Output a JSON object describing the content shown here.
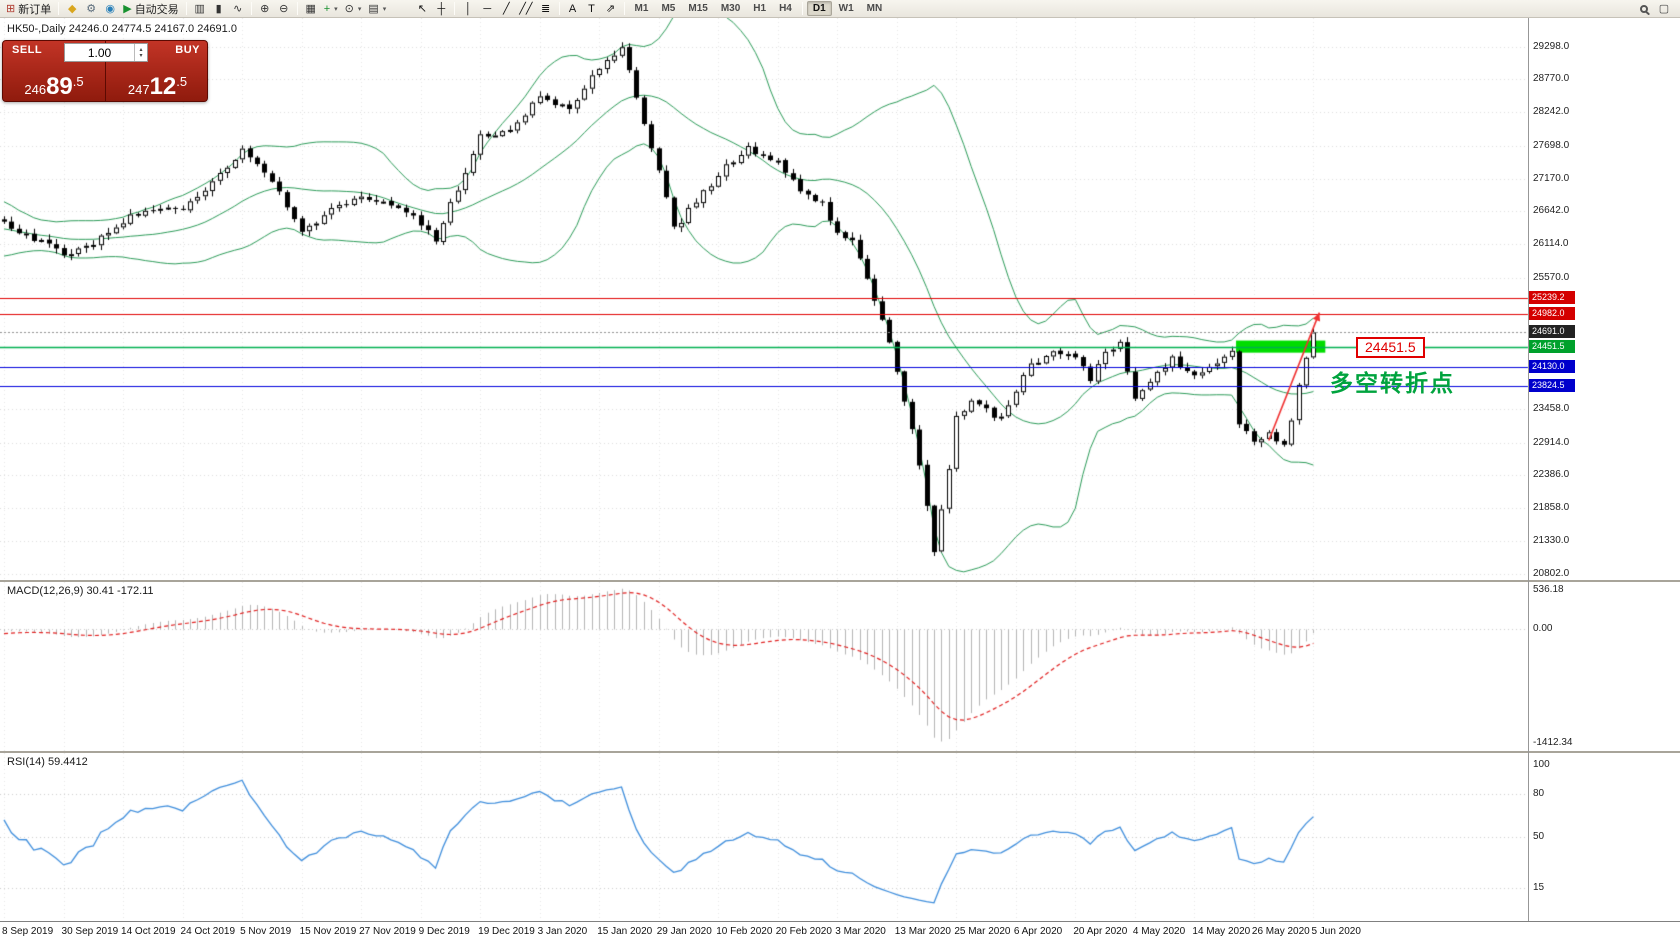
{
  "colors": {
    "background": "#ffffff",
    "grid": "#dcdcdc",
    "axis_text": "#222222",
    "bull_body": "#ffffff",
    "bear_body": "#000000",
    "candle_outline": "#000000",
    "bollinger": "#2a9a57",
    "macd_histogram": "#b4b4b4",
    "macd_signal": "#e02020",
    "rsi_line": "#3f8edc",
    "zone": "#00dd00",
    "arrow": "#f03030"
  },
  "icons": {
    "caret": "▾",
    "volume_up": "▴",
    "volume_down": "▾",
    "fullscreen": "▢"
  },
  "toolbar": {
    "new_order_label": "新订单",
    "autotrading_label": "自动交易",
    "active_timeframe": "D1",
    "timeframes": [
      "M1",
      "M5",
      "M15",
      "M30",
      "H1",
      "H4",
      "D1",
      "W1",
      "MN"
    ],
    "items": [
      {
        "type": "button",
        "name": "new-order-button",
        "icon": "new-order-icon",
        "glyph": "⊞",
        "glyph_color": "#b03a2e",
        "label_key": "new_order_label"
      },
      {
        "type": "sep"
      },
      {
        "type": "icon",
        "name": "metaeditor-button",
        "icon": "metaeditor-icon",
        "glyph": "◆",
        "glyph_color": "#d9a61e"
      },
      {
        "type": "icon",
        "name": "options-button",
        "icon": "gear-icon",
        "glyph": "⚙",
        "glyph_color": "#5a6b7a"
      },
      {
        "type": "icon",
        "name": "community-button",
        "icon": "community-icon",
        "glyph": "◉",
        "glyph_color": "#2980b9"
      },
      {
        "type": "button",
        "name": "autotrading-button",
        "icon": "autotrading-play-icon",
        "glyph": "▶",
        "glyph_color": "#18912f",
        "label_key": "autotrading_label"
      },
      {
        "type": "sep"
      },
      {
        "type": "icon",
        "name": "bar-chart-button",
        "icon": "bar-chart-icon",
        "glyph": "▥",
        "glyph_color": "#333333"
      },
      {
        "type": "icon",
        "name": "candlestick-chart-button",
        "icon": "candlestick-chart-icon",
        "glyph": "▮",
        "glyph_color": "#333333"
      },
      {
        "type": "icon",
        "name": "line-chart-button",
        "icon": "line-chart-icon",
        "glyph": "∿",
        "glyph_color": "#333333"
      },
      {
        "type": "sep"
      },
      {
        "type": "icon",
        "name": "zoom-in-button",
        "icon": "zoom-in-icon",
        "glyph": "⊕",
        "glyph_color": "#333333"
      },
      {
        "type": "icon",
        "name": "zoom-out-button",
        "icon": "zoom-out-icon",
        "glyph": "⊖",
        "glyph_color": "#333333"
      },
      {
        "type": "sep"
      },
      {
        "type": "icon",
        "name": "tile-windows-button",
        "icon": "tile-windows-icon",
        "glyph": "▦",
        "glyph_color": "#333333"
      },
      {
        "type": "icon-caret",
        "name": "indicators-button",
        "icon": "indicators-icon",
        "glyph": "+",
        "glyph_color": "#18912f"
      },
      {
        "type": "icon-caret",
        "name": "periods-button",
        "icon": "clock-icon",
        "glyph": "⊙",
        "glyph_color": "#333333"
      },
      {
        "type": "icon-caret",
        "name": "templates-button",
        "icon": "templates-icon",
        "glyph": "▤",
        "glyph_color": "#333333"
      },
      {
        "type": "gap"
      },
      {
        "type": "icon",
        "name": "cursor-button",
        "icon": "cursor-icon",
        "glyph": "↖",
        "glyph_color": "#111111"
      },
      {
        "type": "icon",
        "name": "crosshair-button",
        "icon": "crosshair-icon",
        "glyph": "┼",
        "glyph_color": "#111111"
      },
      {
        "type": "sep"
      },
      {
        "type": "icon",
        "name": "vertical-line-button",
        "icon": "vertical-line-icon",
        "glyph": "│",
        "glyph_color": "#111111"
      },
      {
        "type": "icon",
        "name": "horizontal-line-button",
        "icon": "horizontal-line-icon",
        "glyph": "─",
        "glyph_color": "#111111"
      },
      {
        "type": "icon",
        "name": "trendline-button",
        "icon": "trendline-icon",
        "glyph": "╱",
        "glyph_color": "#111111"
      },
      {
        "type": "icon",
        "name": "channel-button",
        "icon": "channel-icon",
        "glyph": "╱╱",
        "glyph_color": "#111111"
      },
      {
        "type": "icon",
        "name": "fibonacci-button",
        "icon": "fibonacci-icon",
        "glyph": "≣",
        "glyph_color": "#111111"
      },
      {
        "type": "sep"
      },
      {
        "type": "icon",
        "name": "text-button",
        "icon": "text-icon",
        "glyph": "A",
        "glyph_color": "#111111"
      },
      {
        "type": "icon",
        "name": "text-label-button",
        "icon": "text-label-icon",
        "glyph": "T",
        "glyph_color": "#111111"
      },
      {
        "type": "icon",
        "name": "arrows-button",
        "icon": "arrows-icon",
        "glyph": "⇗",
        "glyph_color": "#111111"
      },
      {
        "type": "sep"
      }
    ]
  },
  "trade_panel": {
    "sell_label": "SELL",
    "buy_label": "BUY",
    "volume": "1.00",
    "sell_price": {
      "pre": "246",
      "big": "89",
      "frac": ".5"
    },
    "buy_price": {
      "pre": "247",
      "big": "12",
      "frac": ".5"
    }
  },
  "chart": {
    "header": "HK50-,Daily  24246.0 24774.5 24167.0 24691.0",
    "symbol": "HK50-",
    "period": "Daily"
  },
  "annotations": {
    "price_label": "24451.5",
    "cn_text": "多空转折点"
  },
  "price_axis": {
    "labels": [
      {
        "text": "29298.0",
        "value": 29298.0
      },
      {
        "text": "28770.0",
        "value": 28770.0
      },
      {
        "text": "28242.0",
        "value": 28242.0
      },
      {
        "text": "27698.0",
        "value": 27698.0
      },
      {
        "text": "27170.0",
        "value": 27170.0
      },
      {
        "text": "26642.0",
        "value": 26642.0
      },
      {
        "text": "26114.0",
        "value": 26114.0
      },
      {
        "text": "25570.0",
        "value": 25570.0
      },
      {
        "text": "23458.0",
        "value": 23458.0
      },
      {
        "text": "22914.0",
        "value": 22914.0
      },
      {
        "text": "22386.0",
        "value": 22386.0
      },
      {
        "text": "21858.0",
        "value": 21858.0
      },
      {
        "text": "21330.0",
        "value": 21330.0
      },
      {
        "text": "20802.0",
        "value": 20802.0
      }
    ]
  },
  "hlines": [
    {
      "price": 25239.2,
      "color": "#e00000",
      "width": 1,
      "tag": "25239.2",
      "tag_bg": "#d40000"
    },
    {
      "price": 24982.0,
      "color": "#e00000",
      "width": 1,
      "tag": "24982.0",
      "tag_bg": "#d40000"
    },
    {
      "price": 24691.0,
      "color": "#909090",
      "width": 1,
      "dash": [
        2,
        2
      ],
      "tag": "24691.0",
      "tag_bg": "#222222"
    },
    {
      "price": 24451.5,
      "color": "#00b050",
      "width": 1.5,
      "tag": "24451.5",
      "tag_bg": "#00a12c"
    },
    {
      "price": 24130.0,
      "color": "#0000dd",
      "width": 1,
      "tag": "24130.0",
      "tag_bg": "#0000cc"
    },
    {
      "price": 23824.5,
      "color": "#0000dd",
      "width": 1,
      "tag": "23824.5",
      "tag_bg": "#0000cc"
    }
  ],
  "zone": {
    "i_from": 166,
    "i_to": 178,
    "price_top": 24560,
    "price_bottom": 24365,
    "color": "#00dd00"
  },
  "arrow": {
    "from": [
      170,
      22950
    ],
    "to": [
      176.8,
      25010
    ]
  },
  "macd": {
    "label": "MACD(12,26,9) 30.41 -172.11",
    "axis": [
      {
        "text": "536.18",
        "value": 536.18
      },
      {
        "text": "0.00",
        "value": 0
      },
      {
        "text": "-1412.34",
        "value": -1412.34
      }
    ]
  },
  "rsi": {
    "label": "RSI(14) 59.4412",
    "levels": [
      80,
      50,
      15
    ],
    "axis": [
      {
        "text": "100",
        "value": 100
      },
      {
        "text": "80",
        "value": 80
      },
      {
        "text": "50",
        "value": 50
      },
      {
        "text": "15",
        "value": 15
      }
    ]
  },
  "date_axis": {
    "labels": [
      "8 Sep 2019",
      "30 Sep 2019",
      "14 Oct 2019",
      "24 Oct 2019",
      "5 Nov 2019",
      "15 Nov 2019",
      "27 Nov 2019",
      "9 Dec 2019",
      "19 Dec 2019",
      "3 Jan 2020",
      "15 Jan 2020",
      "29 Jan 2020",
      "10 Feb 2020",
      "20 Feb 2020",
      "3 Mar 2020",
      "13 Mar 2020",
      "25 Mar 2020",
      "6 Apr 2020",
      "20 Apr 2020",
      "4 May 2020",
      "14 May 2020",
      "26 May 2020",
      "5 Jun 2020"
    ]
  },
  "chart_data": {
    "type": "candlestick",
    "symbol": "HK50-",
    "timeframe": "Daily",
    "visible_ohlc": {
      "open": 24246.0,
      "high": 24774.5,
      "low": 24167.0,
      "close": 24691.0
    },
    "n_candles": 177,
    "last_close": 24691.0,
    "price_axis_range": [
      20700,
      29760
    ],
    "x_tick_step_candles": 8,
    "close_anchors": [
      [
        -30,
        26350
      ],
      [
        -18,
        26750
      ],
      [
        -9,
        26050
      ],
      [
        0,
        26450
      ],
      [
        4,
        26200
      ],
      [
        8,
        25950
      ],
      [
        12,
        26100
      ],
      [
        16,
        26500
      ],
      [
        20,
        26700
      ],
      [
        24,
        26650
      ],
      [
        28,
        27100
      ],
      [
        32,
        27650
      ],
      [
        36,
        27150
      ],
      [
        40,
        26350
      ],
      [
        44,
        26650
      ],
      [
        48,
        26900
      ],
      [
        52,
        26750
      ],
      [
        56,
        26450
      ],
      [
        58,
        26200
      ],
      [
        62,
        27300
      ],
      [
        64,
        27850
      ],
      [
        68,
        27950
      ],
      [
        72,
        28500
      ],
      [
        76,
        28300
      ],
      [
        80,
        28950
      ],
      [
        83,
        29280
      ],
      [
        86,
        28100
      ],
      [
        88,
        27300
      ],
      [
        90,
        26350
      ],
      [
        93,
        26800
      ],
      [
        96,
        27250
      ],
      [
        100,
        27650
      ],
      [
        104,
        27450
      ],
      [
        106,
        27100
      ],
      [
        110,
        26750
      ],
      [
        112,
        26300
      ],
      [
        114,
        26150
      ],
      [
        116,
        25600
      ],
      [
        118,
        24900
      ],
      [
        120,
        24100
      ],
      [
        122,
        23100
      ],
      [
        124,
        21900
      ],
      [
        125,
        21200
      ],
      [
        127,
        22500
      ],
      [
        128,
        23350
      ],
      [
        130,
        23550
      ],
      [
        134,
        23300
      ],
      [
        136,
        23750
      ],
      [
        138,
        24150
      ],
      [
        141,
        24400
      ],
      [
        144,
        24300
      ],
      [
        146,
        23900
      ],
      [
        148,
        24400
      ],
      [
        150,
        24500
      ],
      [
        152,
        23650
      ],
      [
        154,
        23900
      ],
      [
        157,
        24250
      ],
      [
        160,
        24000
      ],
      [
        162,
        24150
      ],
      [
        165,
        24400
      ],
      [
        166,
        23200
      ],
      [
        168,
        22950
      ],
      [
        170,
        23050
      ],
      [
        172,
        22850
      ],
      [
        174,
        23800
      ],
      [
        176,
        24691
      ]
    ],
    "indicators": [
      {
        "name": "Bollinger Bands",
        "period": 20,
        "deviation": 2
      },
      {
        "name": "MACD",
        "fast": 12,
        "slow": 26,
        "signal": 9,
        "values": [
          30.41,
          -172.11
        ],
        "axis_range": [
          -1510,
          590
        ]
      },
      {
        "name": "RSI",
        "period": 14,
        "value": 59.4412,
        "axis_range": [
          -8,
          108
        ]
      }
    ],
    "horizontal_levels": [
      25239.2,
      24982.0,
      24691.0,
      24451.5,
      24130.0,
      23824.5
    ]
  }
}
